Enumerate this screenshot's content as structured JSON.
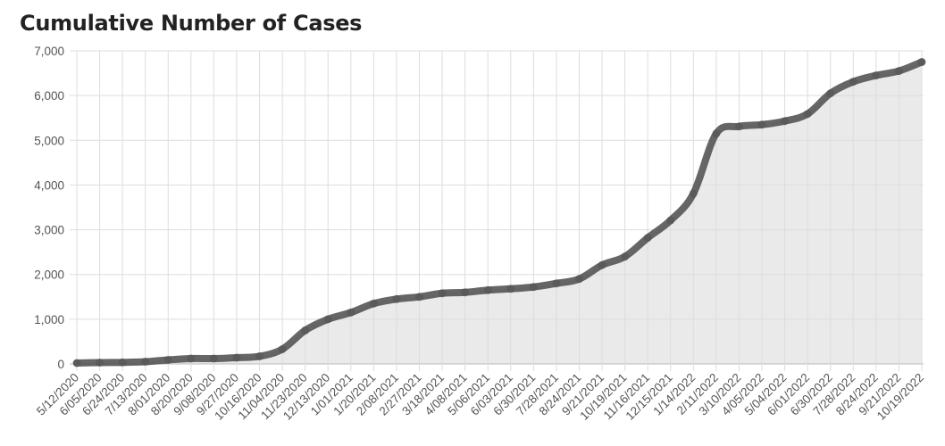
{
  "chart_data": {
    "type": "area",
    "title": "Cumulative Number of Cases",
    "xlabel": "",
    "ylabel": "",
    "ylim": [
      0,
      7000
    ],
    "yticks": [
      "0",
      "1,000",
      "2,000",
      "3,000",
      "4,000",
      "5,000",
      "6,000",
      "7,000"
    ],
    "grid": true,
    "colors": {
      "line": "#555555",
      "fill": "#e6e6e6",
      "grid": "#dddddd"
    },
    "categories": [
      "5/12/2020",
      "6/05/2020",
      "6/24/2020",
      "7/13/2020",
      "8/01/2020",
      "8/20/2020",
      "9/08/2020",
      "9/27/2020",
      "10/16/2020",
      "11/04/2020",
      "11/23/2020",
      "12/13/2020",
      "1/01/2021",
      "1/20/2021",
      "2/08/2021",
      "2/27/2021",
      "3/18/2021",
      "4/08/2021",
      "5/06/2021",
      "6/03/2021",
      "6/30/2021",
      "7/28/2021",
      "8/24/2021",
      "9/21/2021",
      "10/19/2021",
      "11/16/2021",
      "12/15/2021",
      "1/14/2022",
      "2/11/2022",
      "3/10/2022",
      "4/05/2022",
      "5/04/2022",
      "6/01/2022",
      "6/30/2022",
      "7/28/2022",
      "8/24/2022",
      "9/21/2022",
      "10/19/2022"
    ],
    "values": [
      20,
      30,
      35,
      50,
      90,
      120,
      120,
      140,
      170,
      330,
      750,
      1000,
      1150,
      1350,
      1450,
      1500,
      1580,
      1600,
      1650,
      1680,
      1720,
      1800,
      1900,
      2210,
      2400,
      2820,
      3210,
      3810,
      5150,
      5310,
      5350,
      5430,
      5590,
      6050,
      6310,
      6450,
      6550,
      6750
    ]
  }
}
